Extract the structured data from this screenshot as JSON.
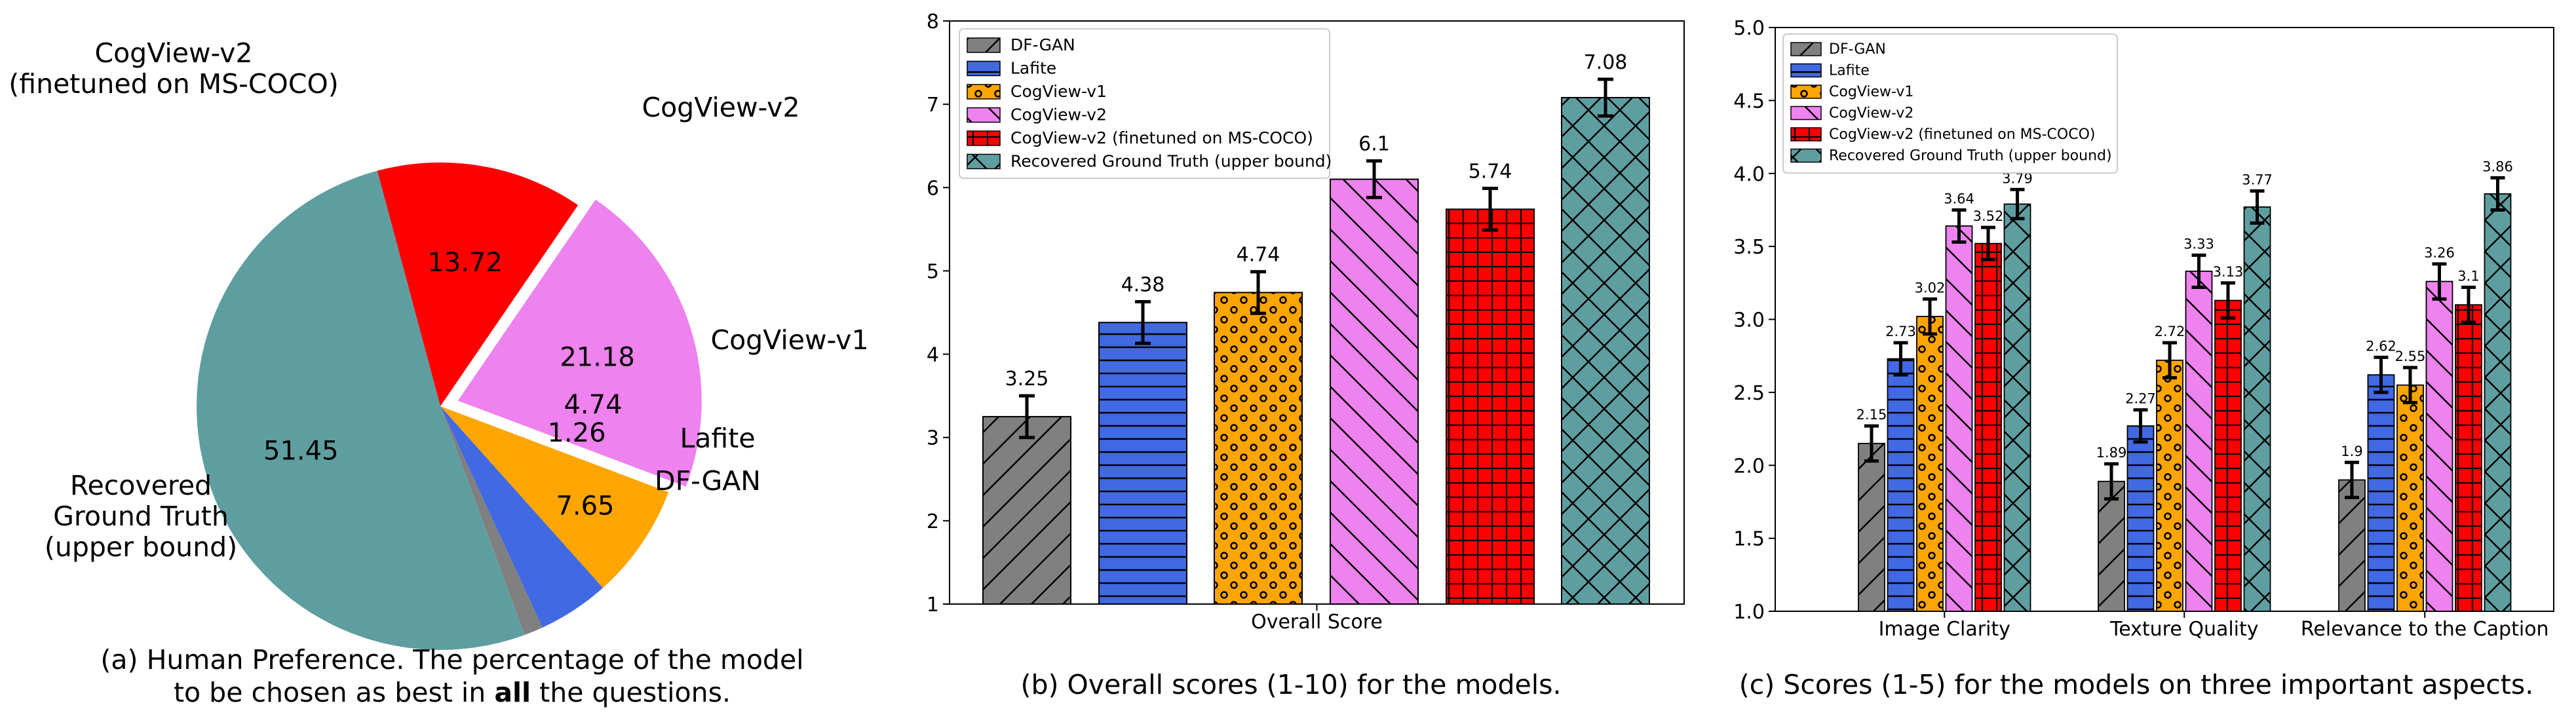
{
  "chart_data": [
    {
      "type": "pie",
      "labels": [
        "CogView-v2\n(finetuned on MS-COCO)",
        "CogView-v2",
        "CogView-v1",
        "Lafite",
        "DF-GAN",
        "Recovered\nGround Truth\n(upper bound)"
      ],
      "values": [
        13.72,
        21.18,
        7.65,
        4.74,
        1.26,
        51.45
      ],
      "value_labels": [
        "13.72",
        "21.18",
        "7.65",
        "4.74",
        "1.26",
        "51.45"
      ],
      "colors": [
        "#ff0000",
        "#ee82ee",
        "#ffa500",
        "#4169e1",
        "#808080",
        "#5f9ea0"
      ],
      "exploded": "CogView-v2",
      "caption_line1": "(a) Human Preference. The percentage of the model",
      "caption_line2_pre": "to be chosen as best in ",
      "caption_line2_bold": "all",
      "caption_line2_post": " the questions."
    },
    {
      "type": "bar",
      "xlabel": "Overall Score",
      "ylim": [
        1,
        8
      ],
      "yticks": [
        "1",
        "2",
        "3",
        "4",
        "5",
        "6",
        "7",
        "8"
      ],
      "series": [
        {
          "name": "DF-GAN",
          "value": 3.25,
          "label": "3.25",
          "err": 0.25
        },
        {
          "name": "Lafite",
          "value": 4.38,
          "label": "4.38",
          "err": 0.25
        },
        {
          "name": "CogView-v1",
          "value": 4.74,
          "label": "4.74",
          "err": 0.25
        },
        {
          "name": "CogView-v2",
          "value": 6.1,
          "label": "6.1",
          "err": 0.22
        },
        {
          "name": "CogView-v2 (finetuned on MS-COCO)",
          "value": 5.74,
          "label": "5.74",
          "err": 0.25
        },
        {
          "name": "Recovered Ground Truth (upper bound)",
          "value": 7.08,
          "label": "7.08",
          "err": 0.22
        }
      ],
      "legend_position": "top-left",
      "caption": "(b) Overall scores (1-10) for the models."
    },
    {
      "type": "bar",
      "categories": [
        "Image Clarity",
        "Texture Quality",
        "Relevance to the Caption"
      ],
      "ylim": [
        1.0,
        5.0
      ],
      "yticks": [
        "1.0",
        "1.5",
        "2.0",
        "2.5",
        "3.0",
        "3.5",
        "4.0",
        "4.5",
        "5.0"
      ],
      "series": [
        {
          "name": "DF-GAN",
          "values": [
            2.15,
            1.89,
            1.9
          ],
          "labels": [
            "2.15",
            "1.89",
            "1.9"
          ],
          "err": [
            0.12,
            0.12,
            0.12
          ]
        },
        {
          "name": "Lafite",
          "values": [
            2.73,
            2.27,
            2.62
          ],
          "labels": [
            "2.73",
            "2.27",
            "2.62"
          ],
          "err": [
            0.11,
            0.11,
            0.12
          ]
        },
        {
          "name": "CogView-v1",
          "values": [
            3.02,
            2.72,
            2.55
          ],
          "labels": [
            "3.02",
            "2.72",
            "2.55"
          ],
          "err": [
            0.12,
            0.12,
            0.12
          ]
        },
        {
          "name": "CogView-v2",
          "values": [
            3.64,
            3.33,
            3.26
          ],
          "labels": [
            "3.64",
            "3.33",
            "3.26"
          ],
          "err": [
            0.11,
            0.11,
            0.12
          ]
        },
        {
          "name": "CogView-v2 (finetuned on MS-COCO)",
          "values": [
            3.52,
            3.13,
            3.1
          ],
          "labels": [
            "3.52",
            "3.13",
            "3.1"
          ],
          "err": [
            0.11,
            0.12,
            0.12
          ]
        },
        {
          "name": "Recovered Ground Truth (upper bound)",
          "values": [
            3.79,
            3.77,
            3.86
          ],
          "labels": [
            "3.79",
            "3.77",
            "3.86"
          ],
          "err": [
            0.1,
            0.11,
            0.11
          ]
        }
      ],
      "legend_position": "top-left",
      "caption": "(c) Scores (1-5) for the models on three important aspects."
    }
  ],
  "legend_colors": [
    "#808080",
    "#4169e1",
    "#ffa500",
    "#ee82ee",
    "#ff0000",
    "#5f9ea0"
  ]
}
